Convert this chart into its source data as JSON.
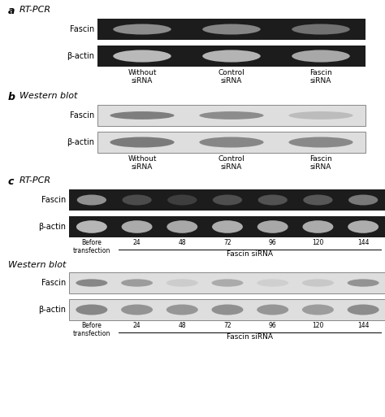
{
  "fig_width": 4.74,
  "fig_height": 5.13,
  "bg_color": "#ffffff",
  "panel_a": {
    "label": "a",
    "subtitle": "RT-PCR",
    "gel_bg": "#1c1c1c",
    "fascin_band_color": "#b8b8b8",
    "bactin_band_color": "#d0d0d0",
    "cols": [
      "Without\nsiRNA",
      "Control\nsiRNA",
      "Fascin\nsiRNA"
    ],
    "fascin_intensities": [
      0.72,
      0.68,
      0.55
    ],
    "bactin_intensities": [
      0.88,
      0.85,
      0.78
    ]
  },
  "panel_b": {
    "label": "b",
    "subtitle": "Western blot",
    "blot_bg": "#dedede",
    "band_color": "#666666",
    "cols": [
      "Without\nsiRNA",
      "Control\nsiRNA",
      "Fascin\nsiRNA"
    ],
    "fascin_intensities": [
      0.8,
      0.68,
      0.28
    ],
    "bactin_intensities": [
      0.82,
      0.72,
      0.7
    ]
  },
  "panel_c": {
    "label": "c",
    "subtitle_pcr": "RT-PCR",
    "subtitle_wb": "Western blot",
    "gel_bg": "#1c1c1c",
    "blot_bg": "#dedede",
    "cols": [
      "Before\ntransfection",
      "24",
      "48",
      "72",
      "96",
      "120",
      "144"
    ],
    "fascin_pcr_intensities": [
      0.75,
      0.3,
      0.22,
      0.32,
      0.35,
      0.38,
      0.6
    ],
    "bactin_pcr_intensities": [
      0.88,
      0.82,
      0.8,
      0.83,
      0.8,
      0.82,
      0.83
    ],
    "fascin_wb_intensities": [
      0.72,
      0.55,
      0.15,
      0.42,
      0.12,
      0.18,
      0.62
    ],
    "bactin_wb_intensities": [
      0.72,
      0.62,
      0.6,
      0.65,
      0.6,
      0.55,
      0.68
    ]
  }
}
